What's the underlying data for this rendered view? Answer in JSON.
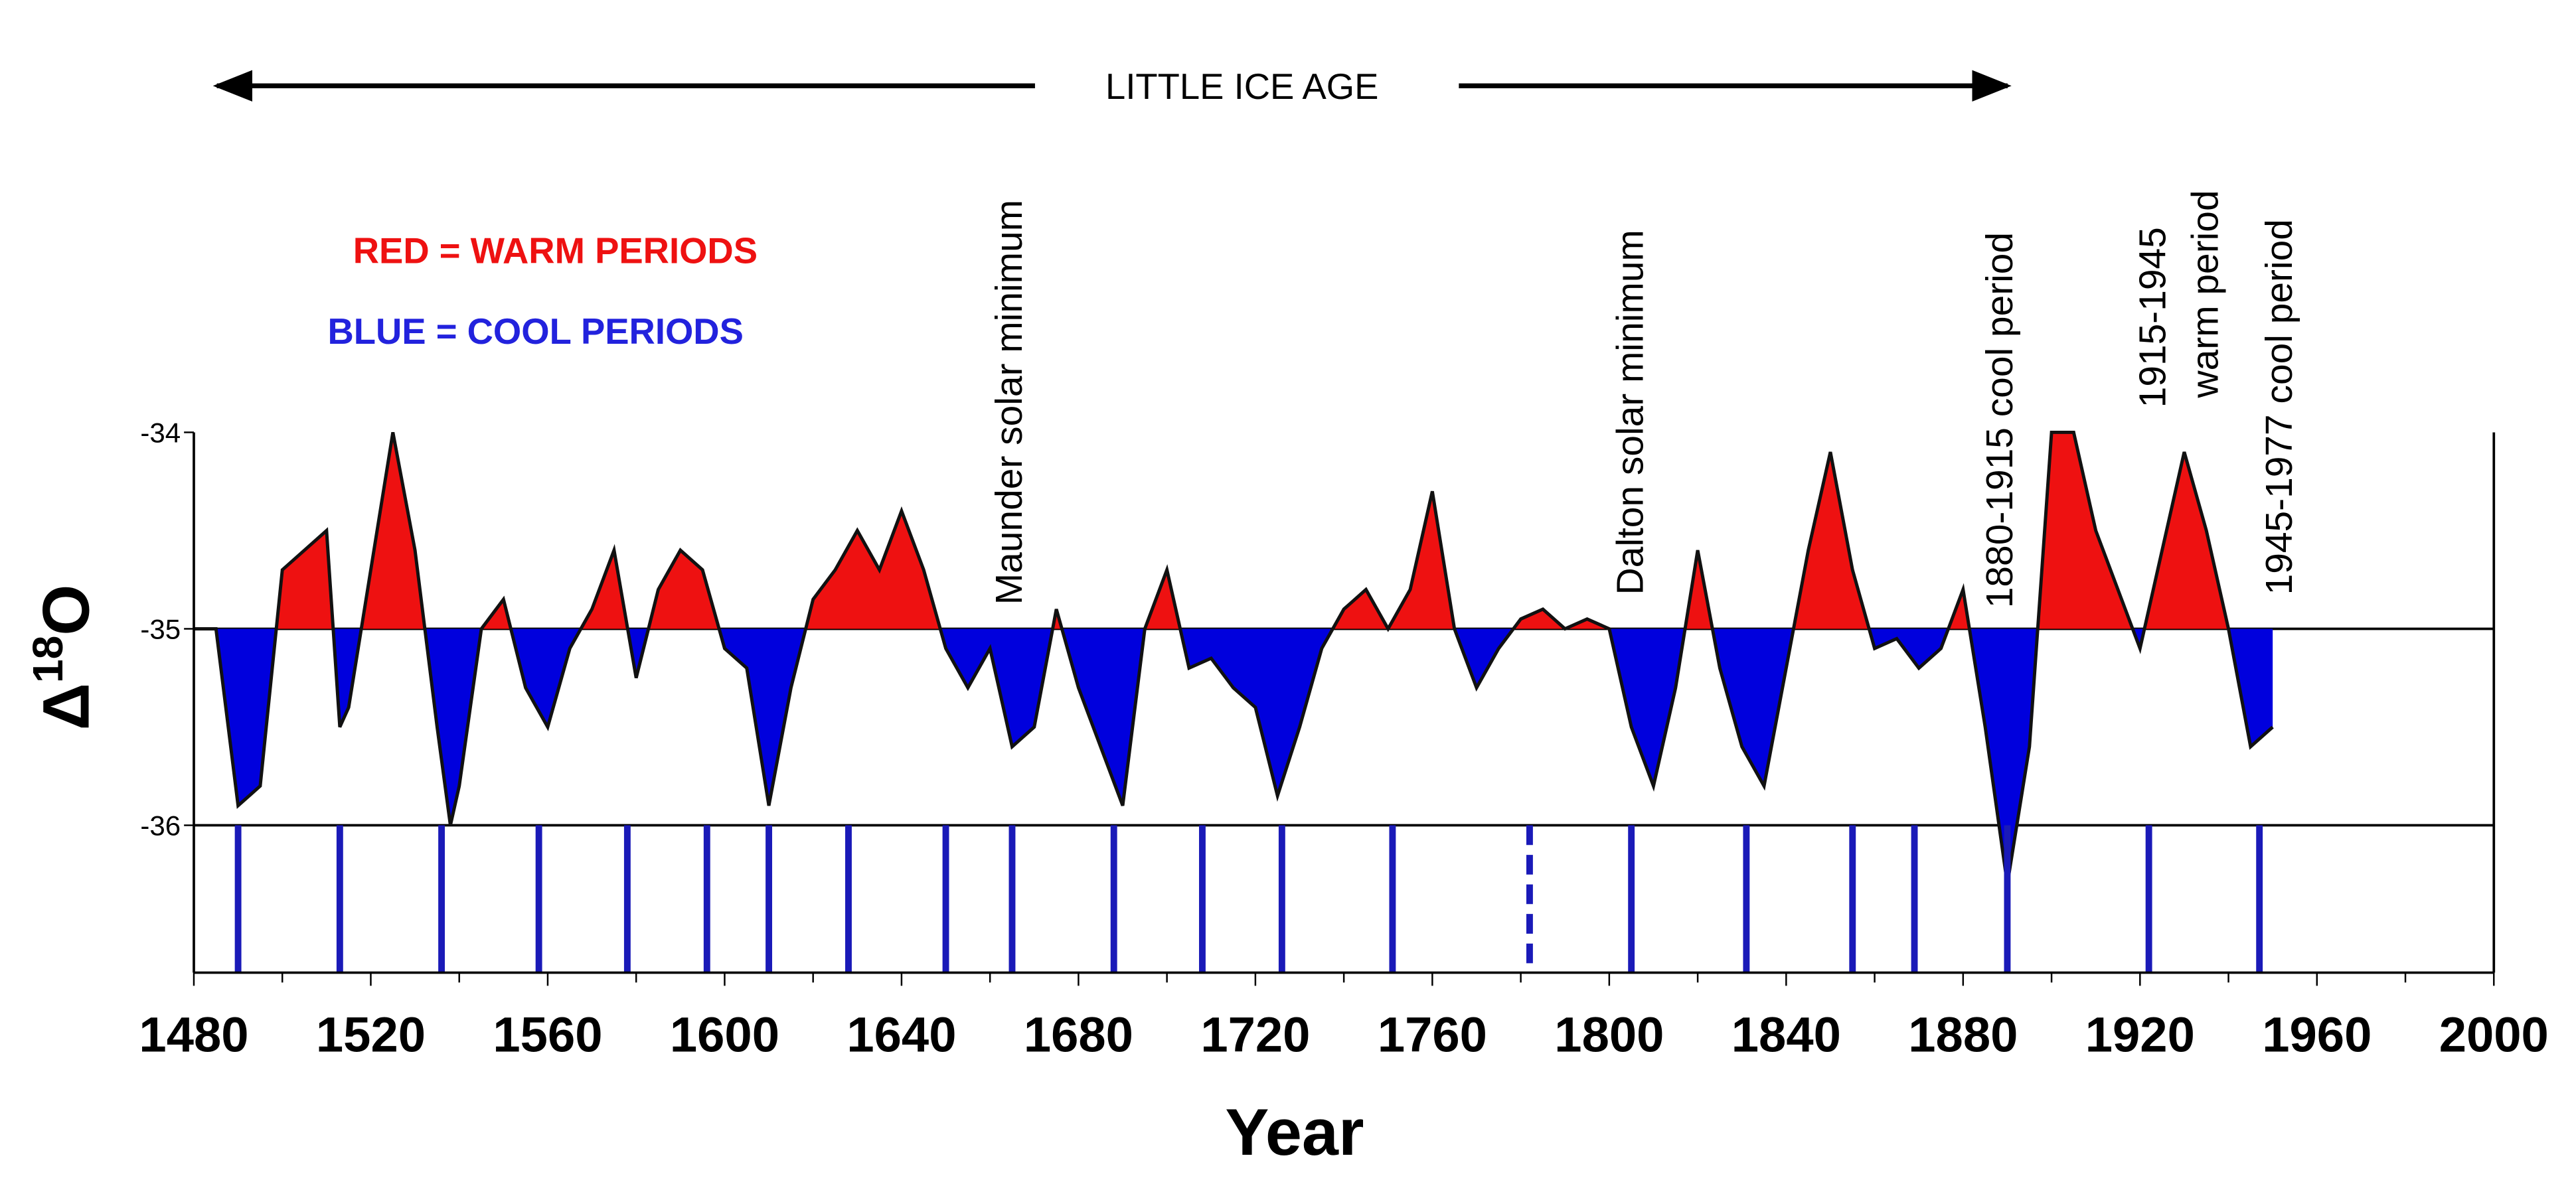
{
  "chart_data": {
    "type": "area",
    "top_label": "LITTLE ICE AGE",
    "legend": [
      "RED = WARM PERIODS",
      "BLUE = COOL PERIODS"
    ],
    "warm_color": "#ee1111",
    "cool_color": "#0000dd",
    "line_color": "#111111",
    "y_label_main": "Δ",
    "y_label_sup": "18",
    "y_label_tail": "O",
    "x_label": "Year",
    "annotations": [
      [
        "Maunder solar  minimum"
      ],
      [
        "Dalton solar minimum"
      ],
      [
        "1880-1915 cool period"
      ],
      [
        "1915-1945",
        "warm period"
      ],
      [
        "1945-1977 cool period"
      ]
    ],
    "x": [
      1480,
      1485,
      1490,
      1495,
      1500,
      1505,
      1510,
      1513,
      1515,
      1520,
      1525,
      1530,
      1535,
      1538,
      1540,
      1545,
      1550,
      1555,
      1560,
      1565,
      1570,
      1575,
      1580,
      1585,
      1590,
      1595,
      1600,
      1605,
      1610,
      1615,
      1620,
      1625,
      1630,
      1635,
      1640,
      1645,
      1650,
      1655,
      1660,
      1665,
      1670,
      1675,
      1680,
      1685,
      1690,
      1695,
      1700,
      1705,
      1710,
      1715,
      1720,
      1725,
      1730,
      1735,
      1740,
      1745,
      1750,
      1755,
      1760,
      1765,
      1770,
      1775,
      1780,
      1785,
      1790,
      1795,
      1800,
      1805,
      1810,
      1815,
      1820,
      1825,
      1830,
      1835,
      1840,
      1845,
      1850,
      1855,
      1860,
      1865,
      1870,
      1875,
      1880,
      1885,
      1890,
      1895,
      1900,
      1905,
      1910,
      1915,
      1920,
      1925,
      1930,
      1935,
      1940,
      1945,
      1950
    ],
    "values": [
      -35.0,
      -35.0,
      -35.9,
      -35.8,
      -34.7,
      -34.6,
      -34.5,
      -35.5,
      -35.4,
      -34.7,
      -34.0,
      -34.6,
      -35.5,
      -36.0,
      -35.8,
      -35.0,
      -34.85,
      -35.3,
      -35.5,
      -35.1,
      -34.9,
      -34.6,
      -35.25,
      -34.8,
      -34.6,
      -34.7,
      -35.1,
      -35.2,
      -35.9,
      -35.3,
      -34.85,
      -34.7,
      -34.5,
      -34.7,
      -34.4,
      -34.7,
      -35.1,
      -35.3,
      -35.1,
      -35.6,
      -35.5,
      -34.9,
      -35.3,
      -35.6,
      -35.9,
      -35.0,
      -34.7,
      -35.2,
      -35.15,
      -35.3,
      -35.4,
      -35.85,
      -35.5,
      -35.1,
      -34.9,
      -34.8,
      -35.0,
      -34.8,
      -34.3,
      -35.0,
      -35.3,
      -35.1,
      -34.95,
      -34.9,
      -35.0,
      -34.95,
      -35.0,
      -35.5,
      -35.8,
      -35.3,
      -34.6,
      -35.2,
      -35.6,
      -35.8,
      -35.2,
      -34.6,
      -34.1,
      -34.7,
      -35.1,
      -35.05,
      -35.2,
      -35.1,
      -34.8,
      -35.5,
      -36.3,
      -35.6,
      -34.0,
      -34.0,
      -34.5,
      -34.8,
      -35.1,
      -34.6,
      -34.1,
      -34.5,
      -35.0,
      -35.6,
      -35.5
    ],
    "markers": [
      1490,
      1513,
      1536,
      1558,
      1578,
      1596,
      1610,
      1628,
      1650,
      1665,
      1688,
      1708,
      1726,
      1751,
      1805,
      1831,
      1855,
      1869,
      1890,
      1922,
      1947
    ],
    "dashed_markers": [
      1782
    ],
    "xlim": [
      1480,
      2000
    ],
    "xticks": [
      1480,
      1520,
      1560,
      1600,
      1640,
      1680,
      1720,
      1760,
      1800,
      1840,
      1880,
      1920,
      1960,
      2000
    ],
    "ylim": [
      -36.75,
      -34
    ],
    "yticks": [
      -34,
      -35,
      -36
    ]
  }
}
